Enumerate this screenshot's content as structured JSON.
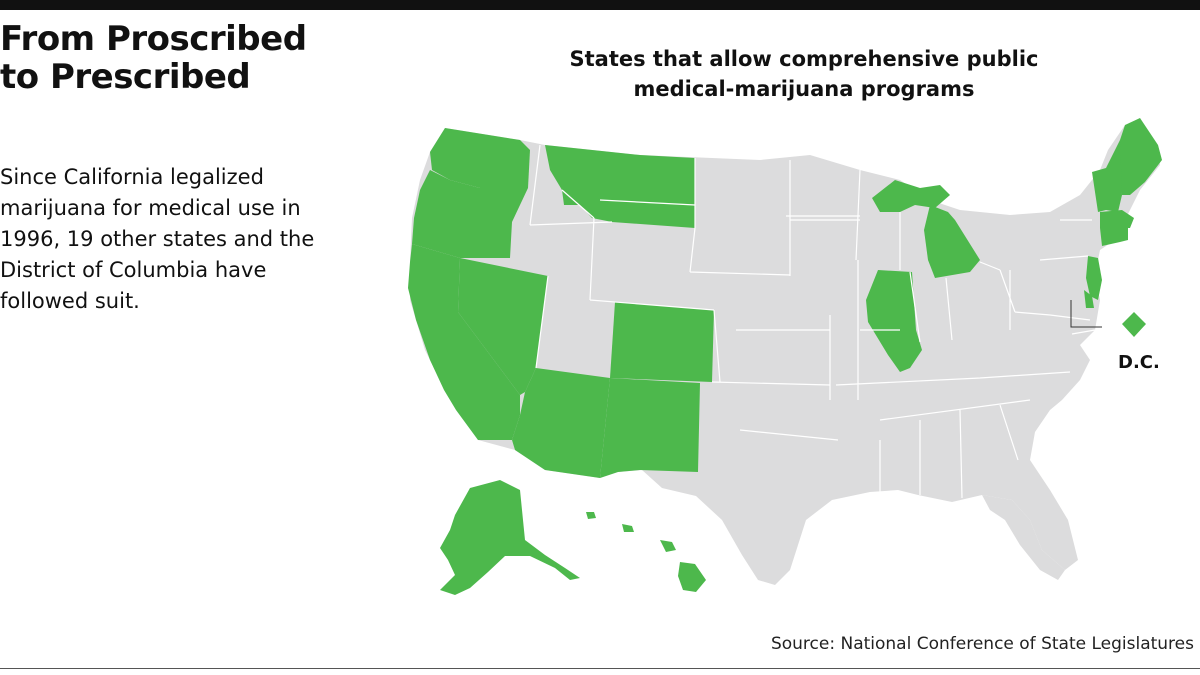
{
  "headline": {
    "line1": "From Proscribed",
    "line2": "to Prescribed"
  },
  "dek": "Since California legalized marijuana for medical use in 1996, 19 other states and the District of Columbia have followed suit.",
  "map_title": {
    "line1": "States that allow comprehensive public",
    "line2": "medical-marijuana programs"
  },
  "dc_label": "D.C.",
  "source": "Source: National Conference of State Legislatures",
  "colors": {
    "program_state": "#4db84c",
    "other_state": "#dcdcdd",
    "rule": "#111111"
  },
  "states_with_programs": [
    "Alaska",
    "Arizona",
    "California",
    "Colorado",
    "Connecticut",
    "Delaware",
    "Hawaii",
    "Illinois",
    "Maine",
    "Massachusetts",
    "Michigan",
    "Montana",
    "Nevada",
    "New Hampshire",
    "New Jersey",
    "New Mexico",
    "Oregon",
    "Rhode Island",
    "Vermont",
    "Washington",
    "District of Columbia"
  ]
}
